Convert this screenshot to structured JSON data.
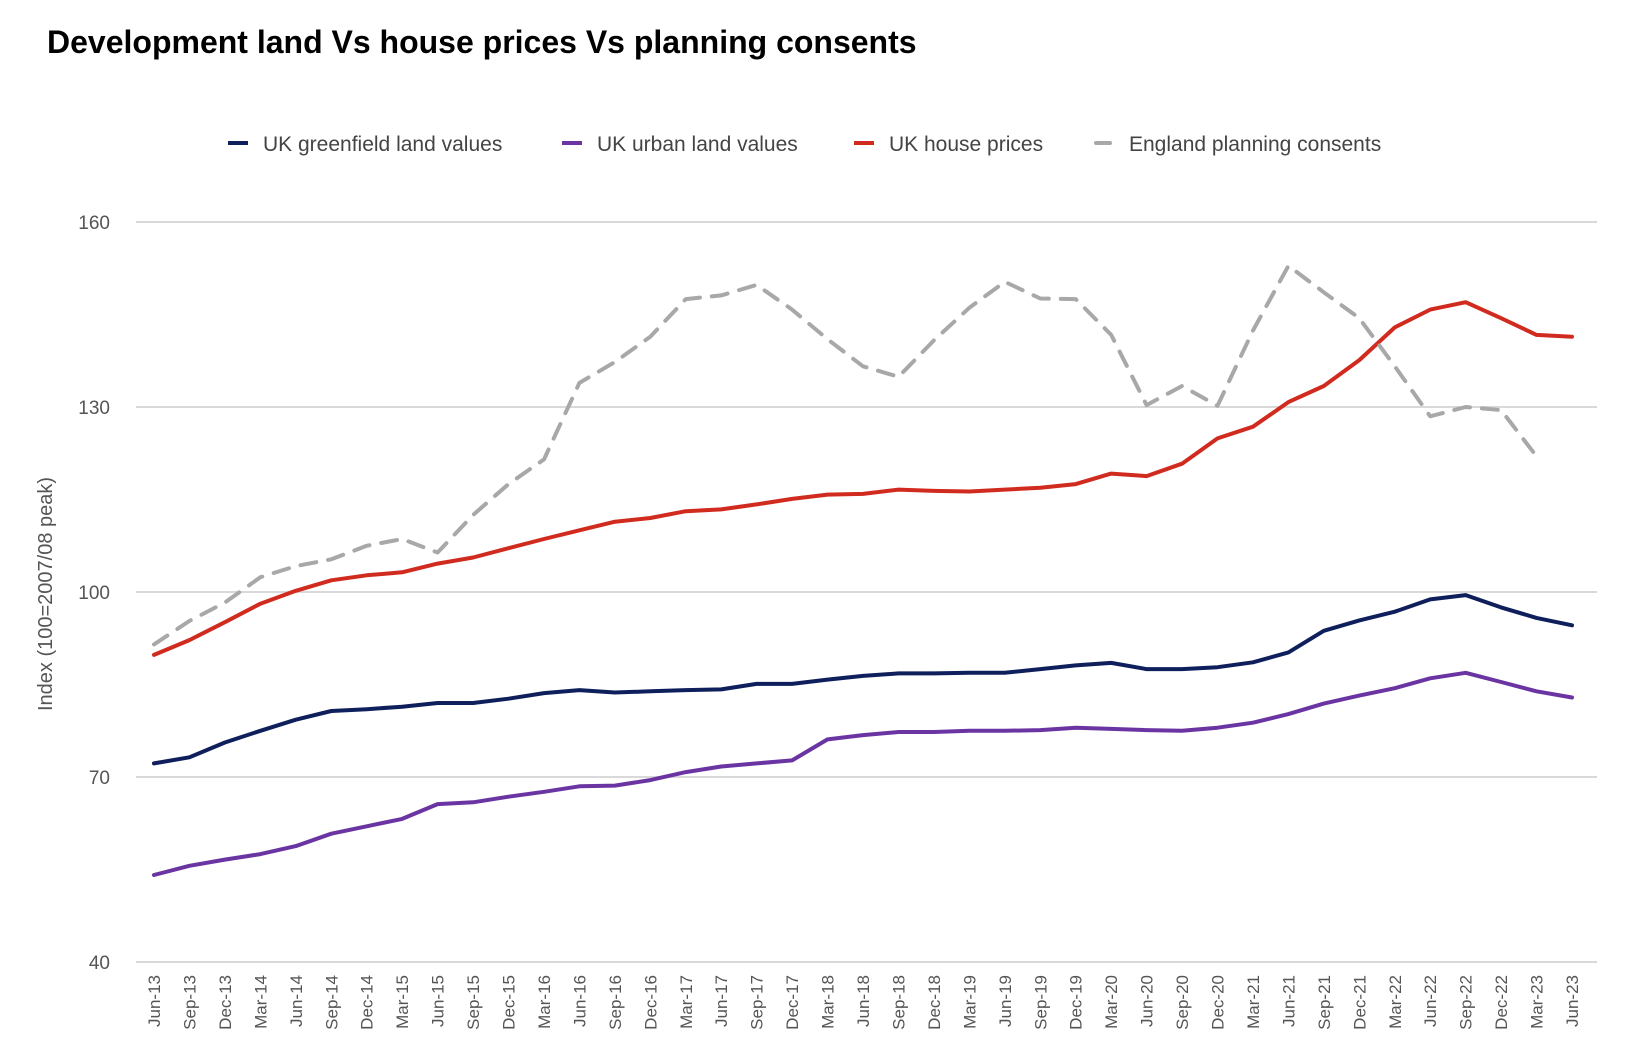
{
  "chart_data": {
    "type": "line",
    "title": "Development land Vs house prices Vs planning consents",
    "xlabel": "",
    "ylabel": "Index (100=2007/08 peak)",
    "ylim": [
      40,
      160
    ],
    "yticks": [
      40,
      70,
      100,
      130,
      160
    ],
    "grid": true,
    "legend_position": "top",
    "categories": [
      "Jun-13",
      "Sep-13",
      "Dec-13",
      "Mar-14",
      "Jun-14",
      "Sep-14",
      "Dec-14",
      "Mar-15",
      "Jun-15",
      "Sep-15",
      "Dec-15",
      "Mar-16",
      "Jun-16",
      "Sep-16",
      "Dec-16",
      "Mar-17",
      "Jun-17",
      "Sep-17",
      "Dec-17",
      "Mar-18",
      "Jun-18",
      "Sep-18",
      "Dec-18",
      "Mar-19",
      "Jun-19",
      "Sep-19",
      "Dec-19",
      "Mar-20",
      "Jun-20",
      "Sep-20",
      "Dec-20",
      "Mar-21",
      "Jun-21",
      "Sep-21",
      "Dec-21",
      "Mar-22",
      "Jun-22",
      "Sep-22",
      "Dec-22",
      "Mar-23",
      "Jun-23"
    ],
    "series": [
      {
        "name": "UK greenfield land values",
        "color": "#0e1f5b",
        "dashed": false,
        "values": [
          72.2,
          73.2,
          75.6,
          77.5,
          79.3,
          80.7,
          81.0,
          81.4,
          82.0,
          82.0,
          82.7,
          83.6,
          84.1,
          83.7,
          83.9,
          84.1,
          84.2,
          85.1,
          85.1,
          85.8,
          86.4,
          86.8,
          86.8,
          86.9,
          86.9,
          87.5,
          88.1,
          88.5,
          87.5,
          87.5,
          87.8,
          88.6,
          90.2,
          93.7,
          95.4,
          96.8,
          98.8,
          99.5,
          97.5,
          95.8,
          94.6
        ]
      },
      {
        "name": "UK urban land values",
        "color": "#6a35a2",
        "dashed": false,
        "values": [
          54.1,
          55.6,
          56.6,
          57.5,
          58.8,
          60.8,
          62.0,
          63.2,
          65.6,
          65.9,
          66.8,
          67.6,
          68.5,
          68.6,
          69.5,
          70.8,
          71.7,
          72.2,
          72.7,
          76.1,
          76.8,
          77.3,
          77.3,
          77.5,
          77.5,
          77.6,
          78.0,
          77.8,
          77.6,
          77.5,
          78.0,
          78.8,
          80.2,
          81.9,
          83.2,
          84.4,
          86.0,
          86.9,
          85.4,
          83.9,
          82.9
        ]
      },
      {
        "name": "UK house prices",
        "color": "#d12a1e",
        "dashed": false,
        "values": [
          89.8,
          92.2,
          95.1,
          98.1,
          100.2,
          101.9,
          102.7,
          103.2,
          104.6,
          105.6,
          107.1,
          108.6,
          110.0,
          111.4,
          112.0,
          113.1,
          113.4,
          114.2,
          115.1,
          115.8,
          115.9,
          116.6,
          116.4,
          116.3,
          116.6,
          116.9,
          117.5,
          119.2,
          118.8,
          120.8,
          124.9,
          126.8,
          130.8,
          133.4,
          137.6,
          142.9,
          145.8,
          147.0,
          144.4,
          141.7,
          141.4
        ]
      },
      {
        "name": "England planning consents",
        "color": "#a8a8a8",
        "dashed": true,
        "values": [
          91.5,
          95.3,
          98.3,
          102.4,
          104.2,
          105.3,
          107.5,
          108.6,
          106.4,
          112.5,
          117.5,
          121.5,
          133.9,
          137.3,
          141.4,
          147.5,
          148.1,
          149.8,
          145.8,
          141.0,
          136.6,
          134.9,
          140.8,
          146.1,
          150.3,
          147.6,
          147.5,
          141.7,
          130.3,
          133.4,
          130.2,
          142.4,
          152.9,
          148.6,
          144.4,
          136.6,
          128.5,
          130.0,
          129.5,
          122.0,
          null
        ]
      }
    ]
  }
}
